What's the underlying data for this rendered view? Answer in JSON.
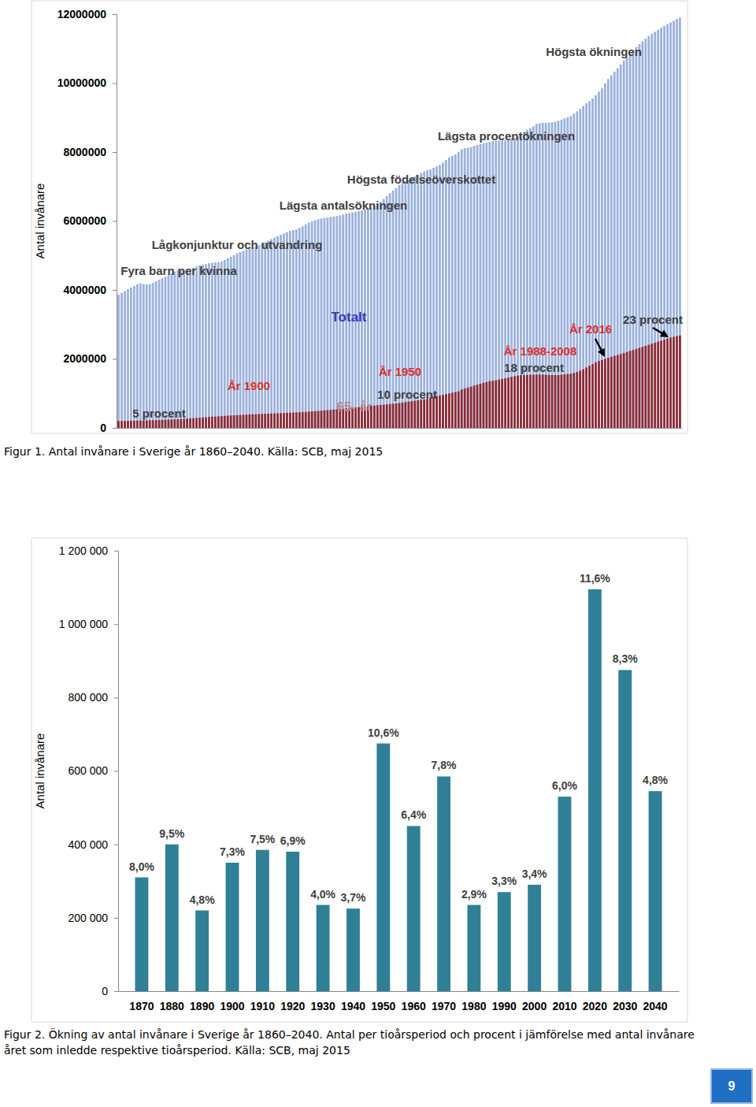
{
  "chart_data": [
    {
      "type": "bar",
      "caption": "Figur 1. Antal invånare i Sverige år 1860–2040. Källa: SCB, maj 2015",
      "y_label": "Antal invånare",
      "stacked": false,
      "grid": false,
      "tick_labels": "y",
      "ylim": [
        0,
        12000000
      ],
      "yticks": [
        0,
        2000000,
        4000000,
        6000000,
        8000000,
        10000000,
        12000000
      ],
      "annotations": [
        "Högsta ökningen",
        "Lägsta procentökningen",
        "Högsta födelseöverskottet",
        "Lägsta antalsökningen",
        "Lågkonjunktur och utvandring",
        "Fyra barn per kvinna",
        "År 1900",
        "5 procent",
        "År 1950",
        "10 procent",
        "År 1988-2008",
        "18 procent",
        "År 2016",
        "23 procent"
      ],
      "categories": [
        null,
        null,
        null,
        null,
        null,
        null,
        null,
        null,
        null,
        null,
        null,
        null,
        null,
        null,
        null,
        null,
        null,
        null,
        null,
        null,
        null,
        null,
        null,
        null,
        null,
        null,
        null,
        null,
        null,
        null,
        null,
        null,
        null,
        null,
        null,
        null,
        null,
        null,
        null,
        null,
        null,
        null,
        null,
        null,
        null,
        null,
        null,
        null,
        null,
        null,
        null,
        null,
        null,
        null,
        null,
        null,
        null,
        null,
        null,
        null,
        null,
        null,
        null,
        null,
        null,
        null,
        null,
        null,
        null,
        null,
        null,
        null,
        null,
        null,
        null,
        null,
        null,
        null,
        null,
        null,
        null,
        null,
        null,
        null,
        null,
        null,
        null,
        null,
        null,
        null,
        null,
        null,
        null,
        null,
        null,
        null,
        null,
        null,
        null,
        null,
        null,
        null,
        null,
        null,
        null,
        null,
        null,
        null,
        null,
        null,
        null,
        null,
        null,
        null,
        null,
        null,
        null,
        null,
        null,
        null,
        null,
        null,
        null,
        null,
        null,
        null,
        null,
        null,
        null,
        null,
        null,
        null,
        null,
        null,
        null,
        null,
        null,
        null,
        null,
        null,
        null,
        null,
        null,
        null,
        null,
        null,
        null,
        null,
        null,
        null,
        null,
        null,
        null,
        null,
        null,
        null,
        null,
        null,
        null,
        null,
        null,
        null,
        null,
        null,
        null,
        null,
        null,
        null,
        null,
        null,
        null,
        null,
        null,
        null,
        null,
        null,
        null,
        null,
        null,
        null,
        null
      ],
      "series": [
        {
          "name": "Totalt",
          "color": "#9bb1dc",
          "values": [
            3860000,
            3917000,
            3966000,
            4022000,
            4070000,
            4115000,
            4161000,
            4196000,
            4173000,
            4159000,
            4169000,
            4205000,
            4251000,
            4297000,
            4341000,
            4383000,
            4429000,
            4484000,
            4531000,
            4579000,
            4566000,
            4572000,
            4579000,
            4604000,
            4644000,
            4683000,
            4717000,
            4734000,
            4748000,
            4774000,
            4785000,
            4803000,
            4806000,
            4824000,
            4873000,
            4919000,
            4962000,
            5009000,
            5063000,
            5097000,
            5136000,
            5176000,
            5200000,
            5221000,
            5260000,
            5295000,
            5337000,
            5377000,
            5429000,
            5476000,
            5522000,
            5562000,
            5600000,
            5639000,
            5679000,
            5713000,
            5735000,
            5757000,
            5800000,
            5847000,
            5905000,
            5954000,
            5987000,
            6021000,
            6054000,
            6074000,
            6089000,
            6105000,
            6119000,
            6131000,
            6142000,
            6163000,
            6190000,
            6212000,
            6234000,
            6251000,
            6267000,
            6285000,
            6310000,
            6341000,
            6371000,
            6389000,
            6432000,
            6491000,
            6560000,
            6636000,
            6719000,
            6803000,
            6884000,
            6956000,
            7042000,
            7099000,
            7151000,
            7192000,
            7235000,
            7290000,
            7341000,
            7390000,
            7436000,
            7471000,
            7498000,
            7542000,
            7582000,
            7628000,
            7695000,
            7773000,
            7844000,
            7894000,
            7934000,
            8004000,
            8081000,
            8115000,
            8129000,
            8144000,
            8177000,
            8208000,
            8236000,
            8255000,
            8276000,
            8294000,
            8318000,
            8324000,
            8328000,
            8331000,
            8343000,
            8359000,
            8382000,
            8415000,
            8459000,
            8527000,
            8591000,
            8644000,
            8693000,
            8745000,
            8816000,
            8837000,
            8844000,
            8848000,
            8854000,
            8861000,
            8883000,
            8909000,
            8941000,
            8976000,
            9011000,
            9048000,
            9113000,
            9183000,
            9256000,
            9341000,
            9416000,
            9483000,
            9556000,
            9645000,
            9747000,
            9851000,
            9995000,
            10120000,
            10230000,
            10330000,
            10430000,
            10540000,
            10650000,
            10760000,
            10860000,
            10960000,
            11050000,
            11130000,
            11210000,
            11290000,
            11360000,
            11430000,
            11490000,
            11550000,
            11610000,
            11660000,
            11710000,
            11760000,
            11810000,
            11860000,
            11900000
          ]
        },
        {
          "name": "65- år",
          "color": "#8c2a35",
          "values": [
            195000,
            198000,
            200000,
            203000,
            205000,
            207000,
            210000,
            212000,
            214000,
            216000,
            218000,
            221000,
            224000,
            227000,
            231000,
            234000,
            238000,
            242000,
            246000,
            250000,
            256000,
            262000,
            268000,
            274000,
            280000,
            287000,
            294000,
            301000,
            308000,
            315000,
            322000,
            328000,
            334000,
            340000,
            346000,
            352000,
            358000,
            363000,
            368000,
            374000,
            379000,
            383000,
            387000,
            391000,
            395000,
            399000,
            403000,
            407000,
            411000,
            415000,
            419000,
            423000,
            427000,
            431000,
            435000,
            439000,
            443000,
            448000,
            453000,
            458000,
            463000,
            469000,
            476000,
            483000,
            490000,
            498000,
            506000,
            514000,
            522000,
            530000,
            538000,
            547000,
            556000,
            565000,
            574000,
            583000,
            592000,
            601000,
            610000,
            619000,
            628000,
            637000,
            646000,
            655000,
            664000,
            673000,
            682000,
            691000,
            700000,
            709000,
            721000,
            734000,
            747000,
            760000,
            773000,
            786000,
            799000,
            812000,
            825000,
            838000,
            878000,
            898000,
            918000,
            938000,
            958000,
            978000,
            998000,
            1018000,
            1038000,
            1058000,
            1112000,
            1140000,
            1168000,
            1196000,
            1224000,
            1252000,
            1280000,
            1305000,
            1330000,
            1355000,
            1362000,
            1380000,
            1400000,
            1420000,
            1440000,
            1460000,
            1480000,
            1500000,
            1515000,
            1530000,
            1530000,
            1535000,
            1540000,
            1542000,
            1545000,
            1546000,
            1545000,
            1540000,
            1535000,
            1532000,
            1530000,
            1532000,
            1540000,
            1550000,
            1560000,
            1570000,
            1590000,
            1620000,
            1660000,
            1700000,
            1750000,
            1800000,
            1850000,
            1900000,
            1940000,
            1970000,
            2000000,
            2030000,
            2060000,
            2090000,
            2110000,
            2140000,
            2170000,
            2200000,
            2230000,
            2260000,
            2290000,
            2320000,
            2350000,
            2380000,
            2410000,
            2440000,
            2470000,
            2500000,
            2530000,
            2560000,
            2590000,
            2620000,
            2640000,
            2660000,
            2680000
          ]
        }
      ]
    },
    {
      "type": "bar",
      "caption": "Figur 2. Ökning av antal invånare i Sverige år 1860–2040. Antal per tioårsperiod och procent i jämförelse med antal invånare året som inledde respektive tioårsperiod. Källa: SCB, maj 2015",
      "y_label": "Antal invånare",
      "grid": false,
      "color": "#2f8096",
      "ylim": [
        0,
        1200000
      ],
      "yticks": [
        0,
        {
          "value": 200000,
          "label": "200 000"
        },
        {
          "value": 400000,
          "label": "400 000"
        },
        {
          "value": 600000,
          "label": "600 000"
        },
        {
          "value": 800000,
          "label": "800 000"
        },
        {
          "value": 1000000,
          "label": "1 000 000"
        },
        {
          "value": 1200000,
          "label": "1 200 000"
        }
      ],
      "categories": [
        "1870",
        "1880",
        "1890",
        "1900",
        "1910",
        "1920",
        "1930",
        "1940",
        "1950",
        "1960",
        "1970",
        "1980",
        "1990",
        "2000",
        "2010",
        "2020",
        "2030",
        "2040"
      ],
      "values": [
        310000,
        400000,
        220000,
        350000,
        385000,
        380000,
        235000,
        225000,
        675000,
        450000,
        585000,
        235000,
        270000,
        290000,
        530000,
        1095000,
        875000,
        545000
      ],
      "percent_labels": [
        "8,0%",
        "9,5%",
        "4,8%",
        "7,3%",
        "7,5%",
        "6,9%",
        "4,0%",
        "3,7%",
        "10,6%",
        "6,4%",
        "7,8%",
        "2,9%",
        "3,3%",
        "3,4%",
        "6,0%",
        "11,6%",
        "8,3%",
        "4,8%"
      ]
    }
  ],
  "page": {
    "number": "9"
  }
}
